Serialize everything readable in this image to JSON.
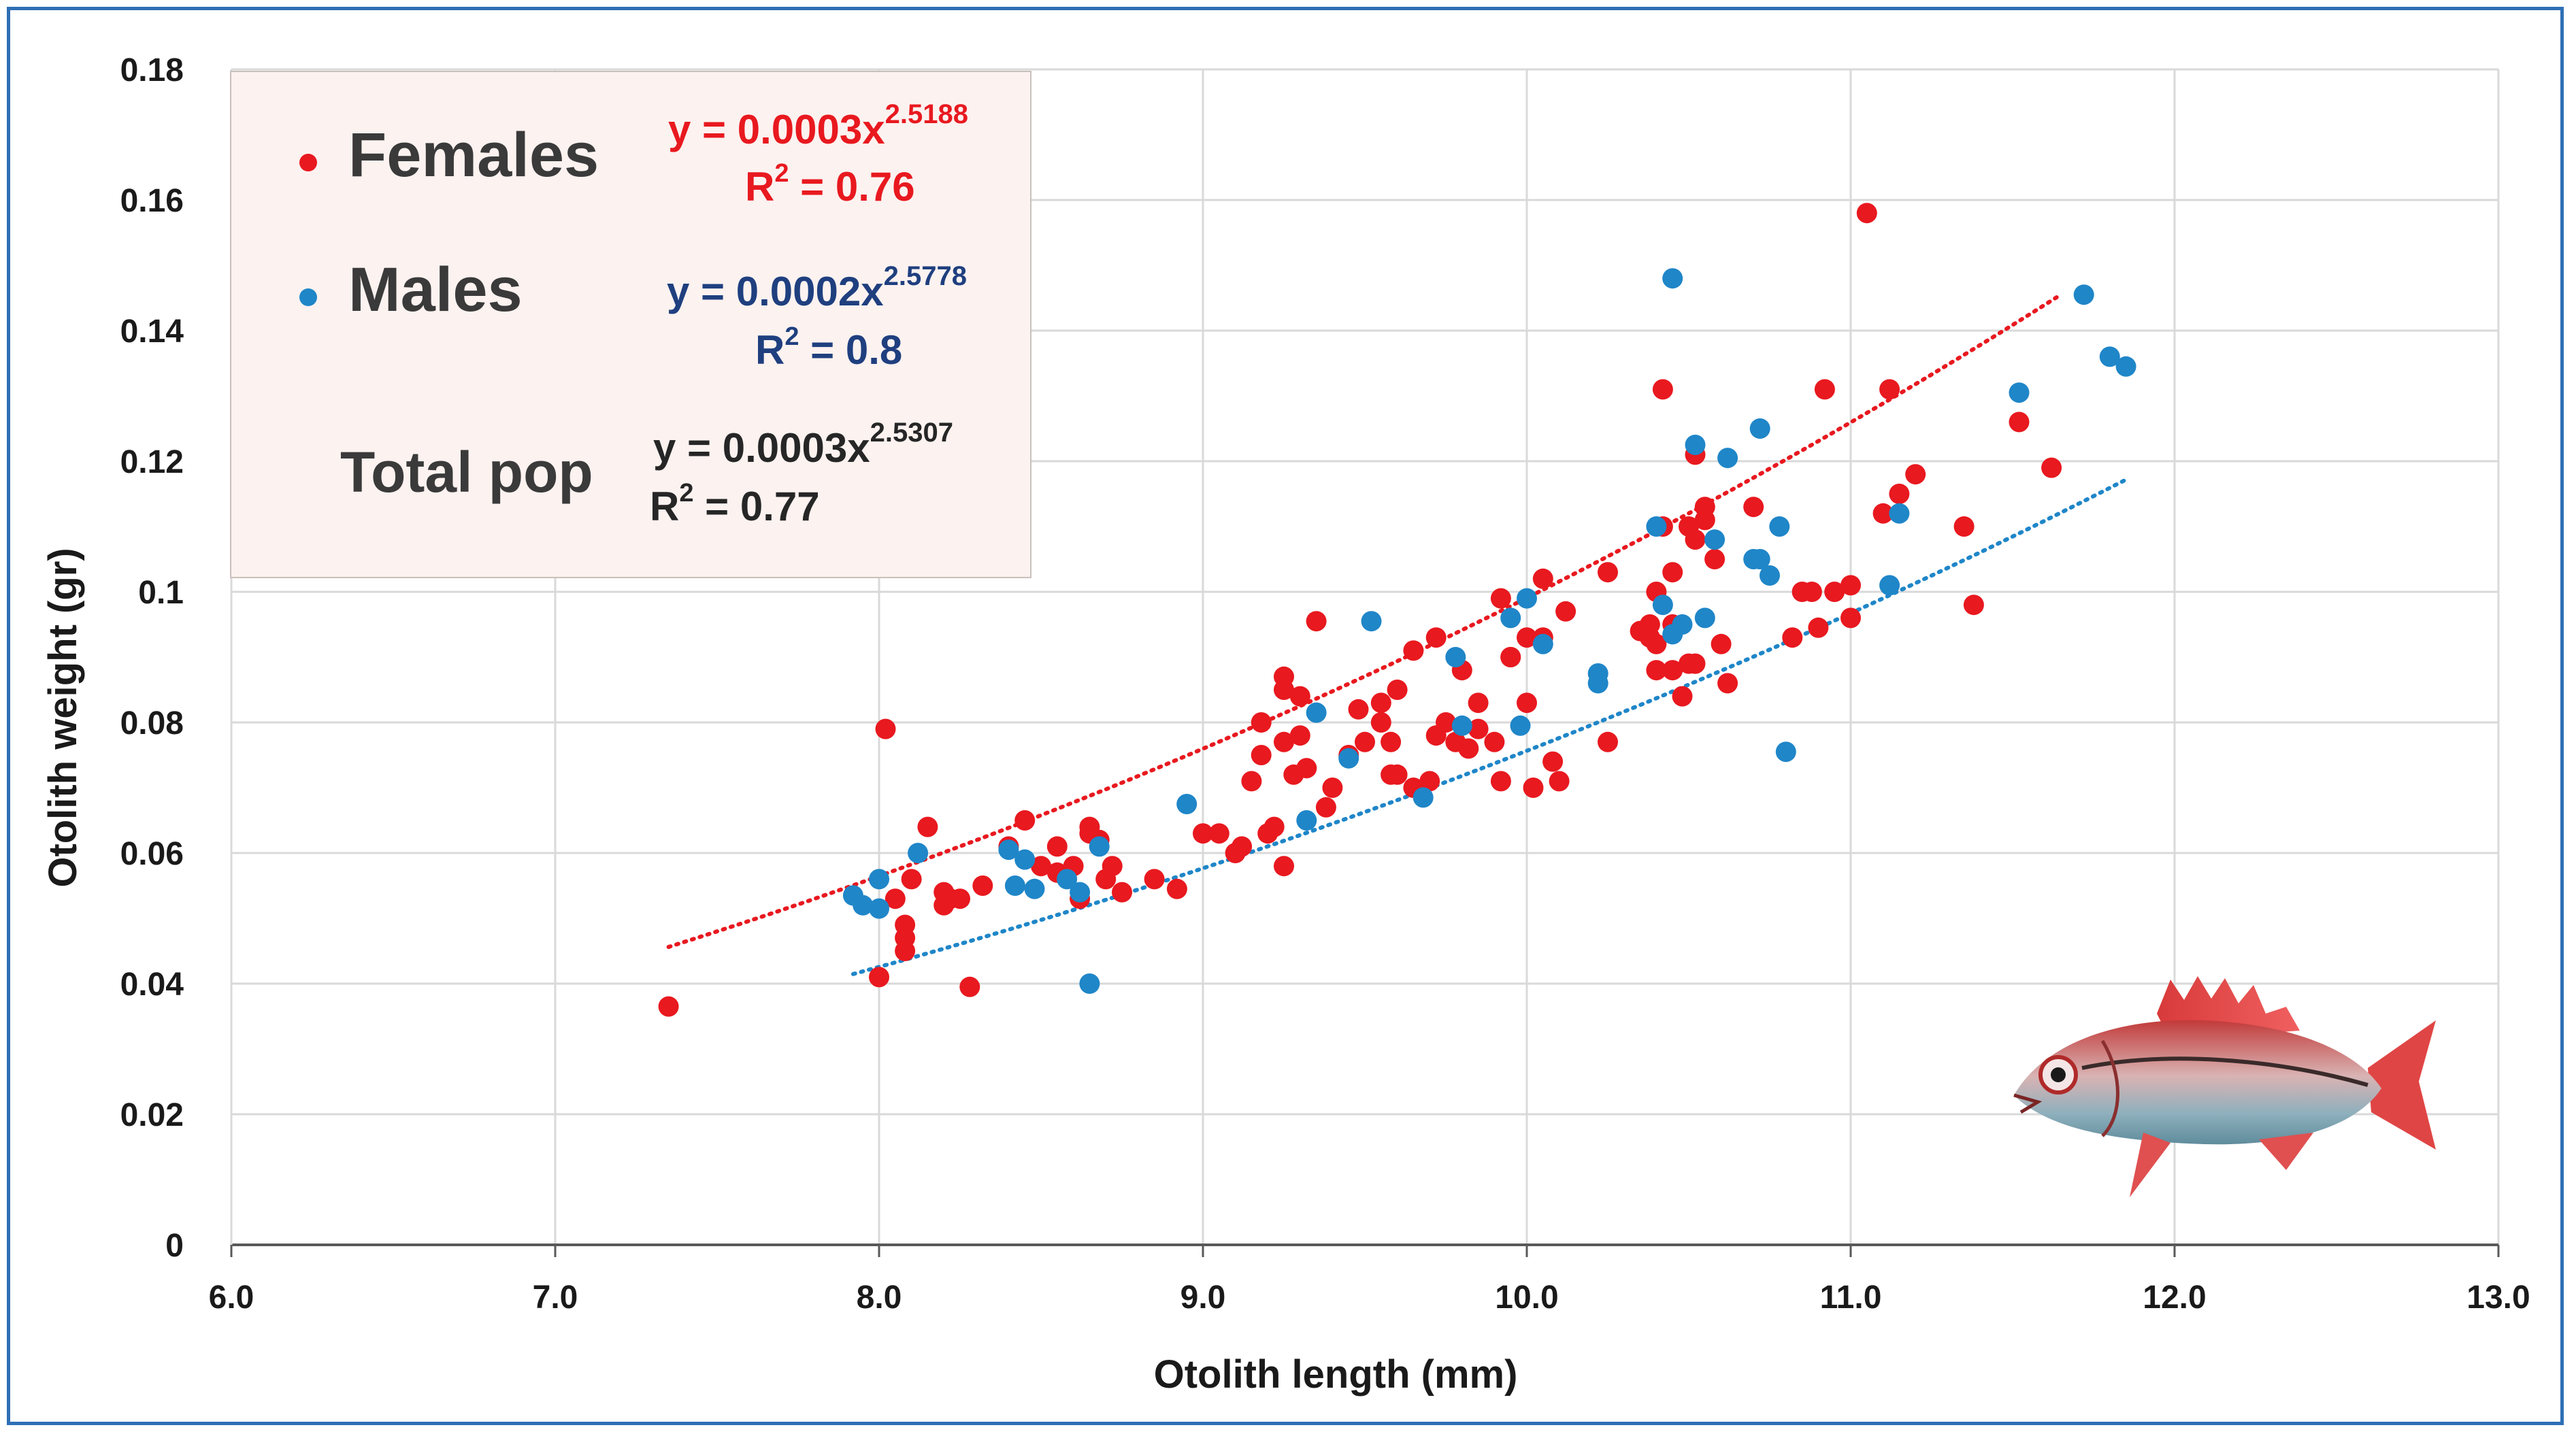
{
  "chart_data": {
    "type": "scatter",
    "xlabel": "Otolith length (mm)",
    "ylabel": "Otolith weight (gr)",
    "xlim": [
      6.0,
      13.0
    ],
    "ylim": [
      0,
      0.18
    ],
    "x_ticks": [
      "6.0",
      "7.0",
      "8.0",
      "9.0",
      "10.0",
      "11.0",
      "12.0",
      "13.0"
    ],
    "y_ticks": [
      "0",
      "0.02",
      "0.04",
      "0.06",
      "0.08",
      "0.1",
      "0.12",
      "0.14",
      "0.16",
      "0.18"
    ],
    "grid": true,
    "series": [
      {
        "name": "Females",
        "color": "#e8191f",
        "equation_prefix": "y = 0.0003x",
        "exponent": "2.5188",
        "r2_prefix": "R",
        "r2_suffix": " = 0.76",
        "trend": {
          "a": 0.0003,
          "b": 2.5188,
          "x_range": [
            7.35,
            11.65
          ]
        },
        "points": [
          [
            7.35,
            0.0365
          ],
          [
            8.0,
            0.041
          ],
          [
            8.02,
            0.079
          ],
          [
            8.05,
            0.053
          ],
          [
            8.08,
            0.045
          ],
          [
            8.08,
            0.047
          ],
          [
            8.08,
            0.049
          ],
          [
            8.1,
            0.056
          ],
          [
            8.15,
            0.064
          ],
          [
            8.2,
            0.052
          ],
          [
            8.2,
            0.054
          ],
          [
            8.22,
            0.053
          ],
          [
            8.25,
            0.053
          ],
          [
            8.28,
            0.0395
          ],
          [
            8.32,
            0.055
          ],
          [
            8.4,
            0.061
          ],
          [
            8.45,
            0.065
          ],
          [
            8.5,
            0.058
          ],
          [
            8.55,
            0.057
          ],
          [
            8.55,
            0.061
          ],
          [
            8.6,
            0.058
          ],
          [
            8.62,
            0.053
          ],
          [
            8.65,
            0.063
          ],
          [
            8.65,
            0.064
          ],
          [
            8.68,
            0.062
          ],
          [
            8.7,
            0.056
          ],
          [
            8.72,
            0.058
          ],
          [
            8.75,
            0.054
          ],
          [
            8.85,
            0.056
          ],
          [
            8.92,
            0.0545
          ],
          [
            9.0,
            0.063
          ],
          [
            9.05,
            0.063
          ],
          [
            9.1,
            0.06
          ],
          [
            9.12,
            0.061
          ],
          [
            9.15,
            0.071
          ],
          [
            9.18,
            0.075
          ],
          [
            9.18,
            0.08
          ],
          [
            9.2,
            0.063
          ],
          [
            9.22,
            0.064
          ],
          [
            9.25,
            0.058
          ],
          [
            9.25,
            0.077
          ],
          [
            9.25,
            0.085
          ],
          [
            9.25,
            0.087
          ],
          [
            9.28,
            0.072
          ],
          [
            9.3,
            0.078
          ],
          [
            9.3,
            0.084
          ],
          [
            9.32,
            0.073
          ],
          [
            9.35,
            0.0955
          ],
          [
            9.38,
            0.067
          ],
          [
            9.4,
            0.07
          ],
          [
            9.45,
            0.075
          ],
          [
            9.48,
            0.082
          ],
          [
            9.5,
            0.077
          ],
          [
            9.55,
            0.08
          ],
          [
            9.55,
            0.083
          ],
          [
            9.58,
            0.072
          ],
          [
            9.58,
            0.077
          ],
          [
            9.6,
            0.072
          ],
          [
            9.6,
            0.085
          ],
          [
            9.65,
            0.091
          ],
          [
            9.65,
            0.07
          ],
          [
            9.7,
            0.071
          ],
          [
            9.72,
            0.093
          ],
          [
            9.72,
            0.078
          ],
          [
            9.75,
            0.08
          ],
          [
            9.78,
            0.077
          ],
          [
            9.8,
            0.088
          ],
          [
            9.82,
            0.076
          ],
          [
            9.85,
            0.083
          ],
          [
            9.85,
            0.079
          ],
          [
            9.9,
            0.077
          ],
          [
            9.92,
            0.071
          ],
          [
            9.92,
            0.099
          ],
          [
            9.95,
            0.09
          ],
          [
            9.95,
            0.09
          ],
          [
            10.0,
            0.083
          ],
          [
            10.0,
            0.093
          ],
          [
            10.02,
            0.07
          ],
          [
            10.05,
            0.102
          ],
          [
            10.05,
            0.093
          ],
          [
            10.08,
            0.074
          ],
          [
            10.1,
            0.071
          ],
          [
            10.12,
            0.097
          ],
          [
            10.25,
            0.077
          ],
          [
            10.25,
            0.103
          ],
          [
            10.35,
            0.094
          ],
          [
            10.38,
            0.093
          ],
          [
            10.38,
            0.095
          ],
          [
            10.4,
            0.092
          ],
          [
            10.4,
            0.088
          ],
          [
            10.4,
            0.1
          ],
          [
            10.42,
            0.131
          ],
          [
            10.42,
            0.11
          ],
          [
            10.45,
            0.103
          ],
          [
            10.45,
            0.095
          ],
          [
            10.45,
            0.088
          ],
          [
            10.48,
            0.084
          ],
          [
            10.5,
            0.089
          ],
          [
            10.5,
            0.11
          ],
          [
            10.52,
            0.108
          ],
          [
            10.52,
            0.121
          ],
          [
            10.52,
            0.089
          ],
          [
            10.55,
            0.113
          ],
          [
            10.55,
            0.111
          ],
          [
            10.58,
            0.105
          ],
          [
            10.6,
            0.092
          ],
          [
            10.62,
            0.086
          ],
          [
            10.7,
            0.113
          ],
          [
            10.82,
            0.093
          ],
          [
            10.85,
            0.1
          ],
          [
            10.88,
            0.1
          ],
          [
            10.9,
            0.0945
          ],
          [
            10.92,
            0.131
          ],
          [
            10.95,
            0.1
          ],
          [
            11.0,
            0.096
          ],
          [
            11.0,
            0.101
          ],
          [
            11.05,
            0.158
          ],
          [
            11.1,
            0.112
          ],
          [
            11.12,
            0.131
          ],
          [
            11.15,
            0.115
          ],
          [
            11.2,
            0.118
          ],
          [
            11.35,
            0.11
          ],
          [
            11.38,
            0.098
          ],
          [
            11.52,
            0.126
          ],
          [
            11.62,
            0.119
          ]
        ]
      },
      {
        "name": "Males",
        "color": "#1f86c8",
        "equation_prefix": "y = 0.0002x",
        "exponent": "2.5778",
        "r2_prefix": "R",
        "r2_suffix": " = 0.8",
        "trend": {
          "a": 0.0002,
          "b": 2.5778,
          "x_range": [
            7.92,
            11.85
          ]
        },
        "points": [
          [
            7.92,
            0.0535
          ],
          [
            7.95,
            0.052
          ],
          [
            8.0,
            0.056
          ],
          [
            8.0,
            0.0515
          ],
          [
            8.12,
            0.06
          ],
          [
            8.4,
            0.0605
          ],
          [
            8.42,
            0.055
          ],
          [
            8.45,
            0.059
          ],
          [
            8.48,
            0.0545
          ],
          [
            8.58,
            0.056
          ],
          [
            8.62,
            0.054
          ],
          [
            8.65,
            0.04
          ],
          [
            8.68,
            0.061
          ],
          [
            8.95,
            0.0675
          ],
          [
            9.32,
            0.065
          ],
          [
            9.35,
            0.0815
          ],
          [
            9.45,
            0.0745
          ],
          [
            9.52,
            0.0955
          ],
          [
            9.68,
            0.0685
          ],
          [
            9.78,
            0.09
          ],
          [
            9.8,
            0.0795
          ],
          [
            9.95,
            0.096
          ],
          [
            9.98,
            0.0795
          ],
          [
            10.0,
            0.099
          ],
          [
            10.05,
            0.092
          ],
          [
            10.22,
            0.086
          ],
          [
            10.22,
            0.0875
          ],
          [
            10.4,
            0.11
          ],
          [
            10.42,
            0.098
          ],
          [
            10.45,
            0.0935
          ],
          [
            10.45,
            0.148
          ],
          [
            10.48,
            0.095
          ],
          [
            10.52,
            0.1225
          ],
          [
            10.55,
            0.096
          ],
          [
            10.58,
            0.108
          ],
          [
            10.62,
            0.1205
          ],
          [
            10.7,
            0.105
          ],
          [
            10.72,
            0.105
          ],
          [
            10.72,
            0.125
          ],
          [
            10.75,
            0.1025
          ],
          [
            10.78,
            0.11
          ],
          [
            10.8,
            0.0755
          ],
          [
            11.12,
            0.101
          ],
          [
            11.15,
            0.112
          ],
          [
            11.52,
            0.1305
          ],
          [
            11.72,
            0.1455
          ],
          [
            11.8,
            0.136
          ],
          [
            11.85,
            0.1345
          ]
        ]
      },
      {
        "name": "Total pop",
        "color": "#262626",
        "equation_prefix": "y = 0.0003x",
        "exponent": "2.5307",
        "r2_prefix": "R",
        "r2_suffix": " = 0.77"
      }
    ],
    "legend_placement": "top-left"
  },
  "legend": {
    "females_label": "Females",
    "males_label": "Males",
    "total_label": "Total pop"
  },
  "image": {
    "fish_icon": "red-fish-illustration"
  }
}
